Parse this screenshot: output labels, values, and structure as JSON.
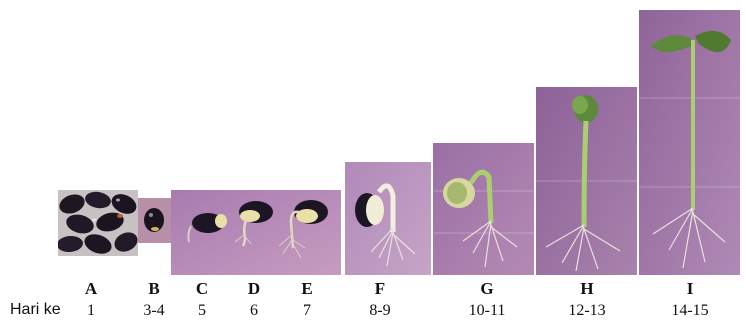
{
  "row_label": "Hari ke",
  "stages": [
    {
      "letter": "A",
      "day": "1"
    },
    {
      "letter": "B",
      "day": "3-4"
    },
    {
      "letter": "C",
      "day": "5"
    },
    {
      "letter": "D",
      "day": "6"
    },
    {
      "letter": "E",
      "day": "7"
    },
    {
      "letter": "F",
      "day": "8-9"
    },
    {
      "letter": "G",
      "day": "10-11"
    },
    {
      "letter": "H",
      "day": "12-13"
    },
    {
      "letter": "I",
      "day": "14-15"
    }
  ],
  "colors": {
    "panel_bg": "#9b6fa3",
    "seed": "#1c1624",
    "cotyledon": "#e8e0a8",
    "stem": "#a9cf6e",
    "leaf": "#5d8a3a",
    "root": "#d8d0c8"
  }
}
